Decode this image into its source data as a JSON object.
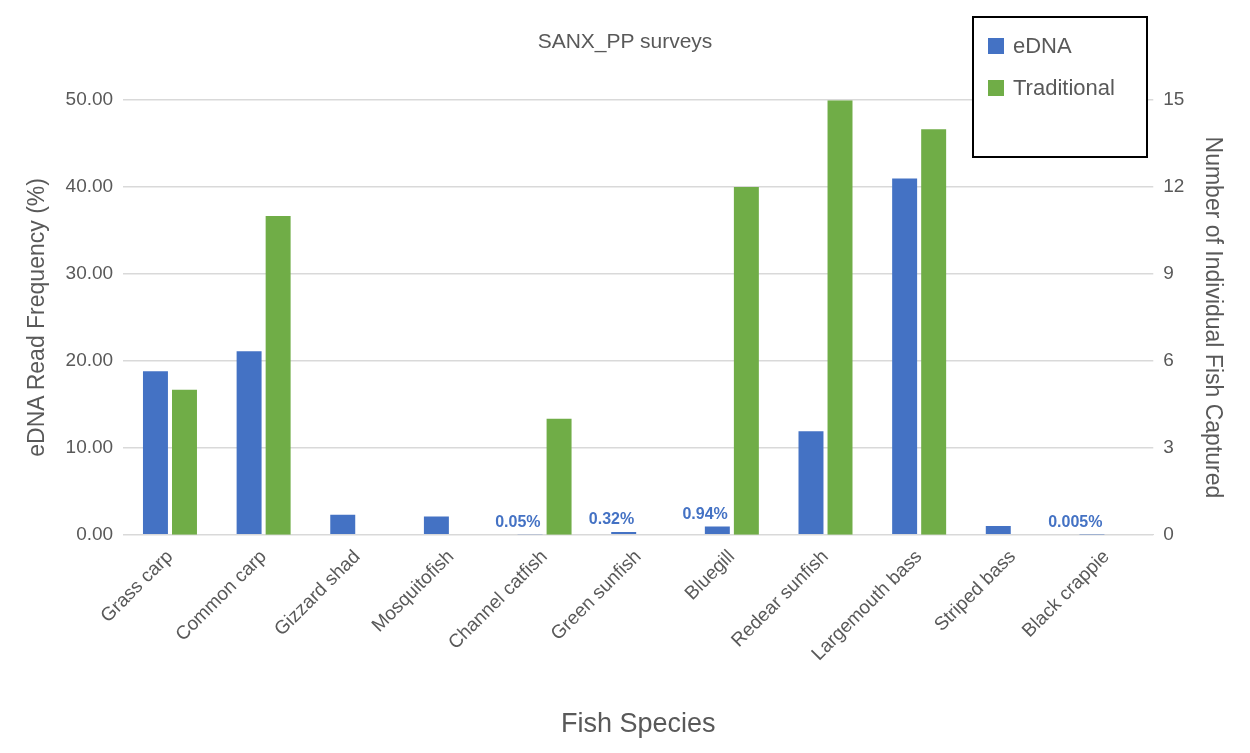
{
  "chart_data": {
    "type": "bar",
    "title": "SANX_PP surveys",
    "xlabel": "Fish Species",
    "ylabel": "eDNA Read Frequency (%)",
    "y2label": "Number of Individual Fish Captured",
    "categories": [
      "Grass carp",
      "Common carp",
      "Gizzard shad",
      "Mosquitofish",
      "Channel catfish",
      "Green sunfish",
      "Bluegill",
      "Redear sunfish",
      "Largemouth bass",
      "Striped bass",
      "Black crappie"
    ],
    "series": [
      {
        "name": "eDNA",
        "color": "#4472c4",
        "values": [
          18.8,
          21.1,
          2.3,
          2.1,
          0.05,
          0.32,
          0.94,
          11.9,
          41.0,
          1.0,
          0.005
        ],
        "value_labels": [
          null,
          null,
          null,
          null,
          "0.05%",
          "0.32%",
          "0.94%",
          null,
          null,
          null,
          "0.005%"
        ]
      },
      {
        "name": "Traditional",
        "color": "#70ad47",
        "axis": "y2",
        "values": [
          5,
          11,
          0,
          0,
          4,
          0,
          12,
          15,
          14,
          0,
          0
        ]
      }
    ],
    "ylim": [
      0,
      50
    ],
    "yticks": [
      {
        "value": 0,
        "label": "0.00"
      },
      {
        "value": 10,
        "label": "10.00"
      },
      {
        "value": 20,
        "label": "20.00"
      },
      {
        "value": 30,
        "label": "30.00"
      },
      {
        "value": 40,
        "label": "40.00"
      },
      {
        "value": 50,
        "label": "50.00"
      }
    ],
    "y2lim": [
      0,
      15
    ],
    "y2ticks": [
      0,
      3,
      6,
      9,
      12,
      15
    ],
    "grid": "y",
    "legend": "top right"
  }
}
